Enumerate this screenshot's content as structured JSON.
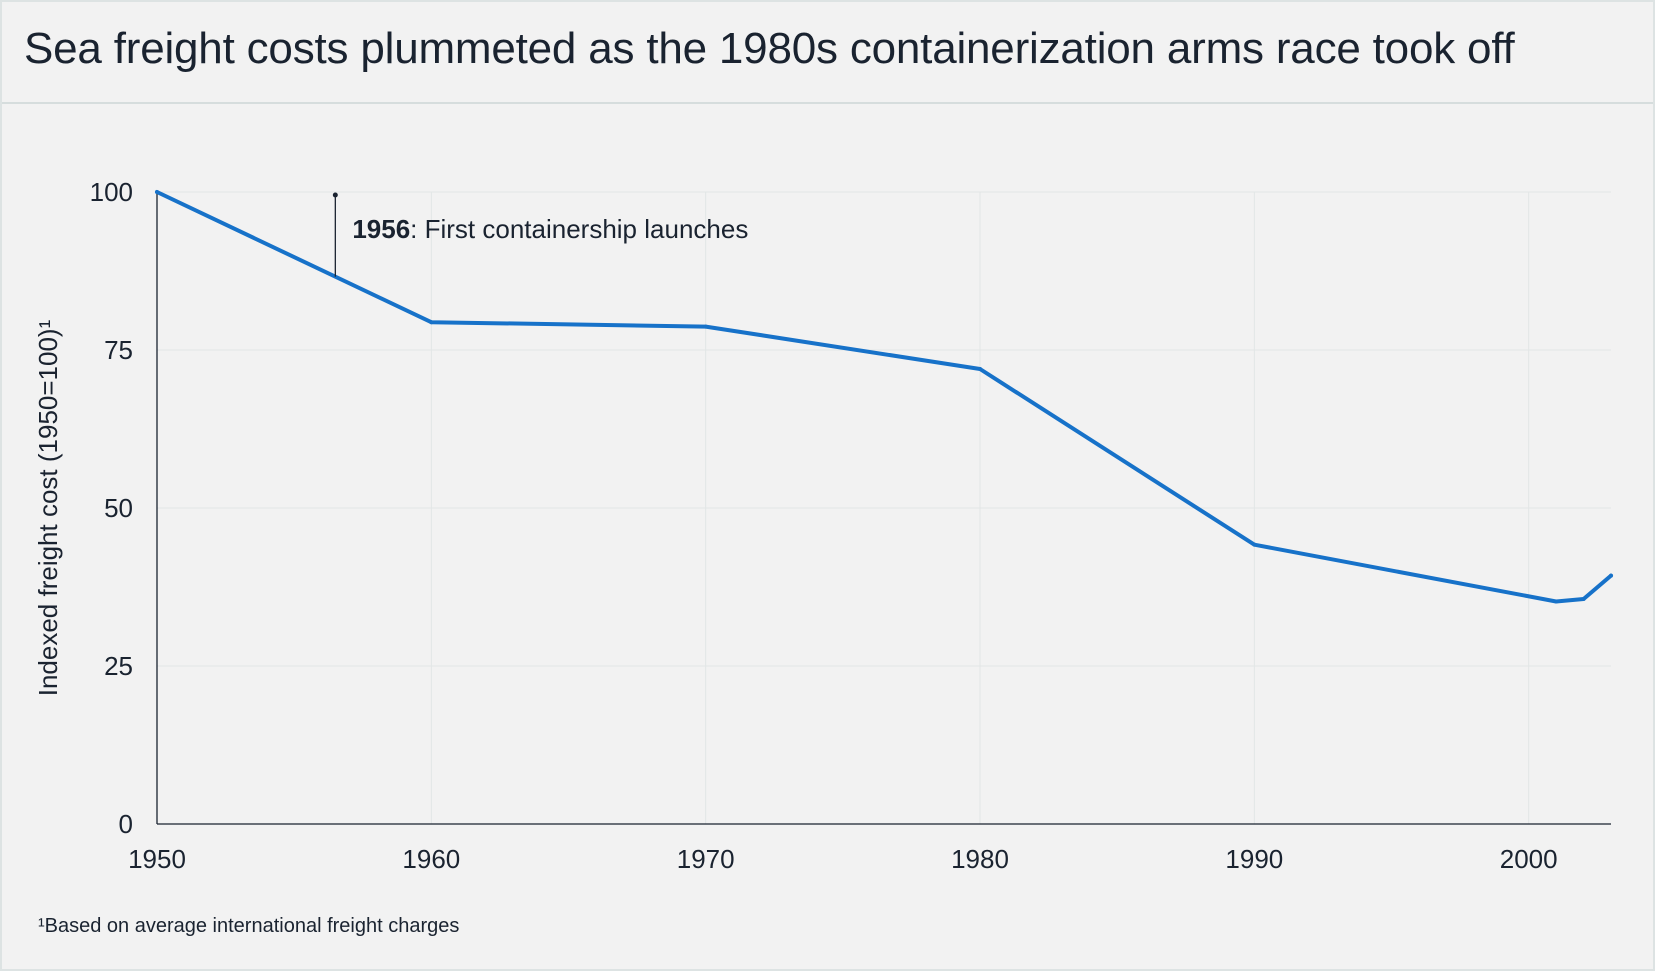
{
  "title": "Sea freight costs plummeted as the 1980s containerization arms race took off",
  "footnote": "¹Based on average international freight charges",
  "colors": {
    "line": "#1772c9",
    "grid": "#e2e6e6",
    "axis": "#1a2330",
    "background": "#f2f2f2"
  },
  "chart_data": {
    "type": "line",
    "title": "Sea freight costs plummeted as the 1980s containerization arms race took off",
    "xlabel": "",
    "ylabel": "Indexed freight cost (1950=100)¹",
    "xlim": [
      1950,
      2003
    ],
    "ylim": [
      0,
      100
    ],
    "x_ticks": [
      1950,
      1960,
      1970,
      1980,
      1990,
      2000
    ],
    "y_ticks": [
      0,
      25,
      50,
      75,
      100
    ],
    "grid": true,
    "series": [
      {
        "x": [
          1950,
          1960,
          1970,
          1980,
          1990,
          2001,
          2002,
          2003
        ],
        "y": [
          100,
          79.4,
          78.7,
          72,
          44.2,
          35.2,
          35.6,
          39.3
        ]
      }
    ],
    "annotations": [
      {
        "x": 1956.5,
        "y": 86.6,
        "label_bold": "1956",
        "label_rest": ": First containership launches"
      }
    ]
  }
}
